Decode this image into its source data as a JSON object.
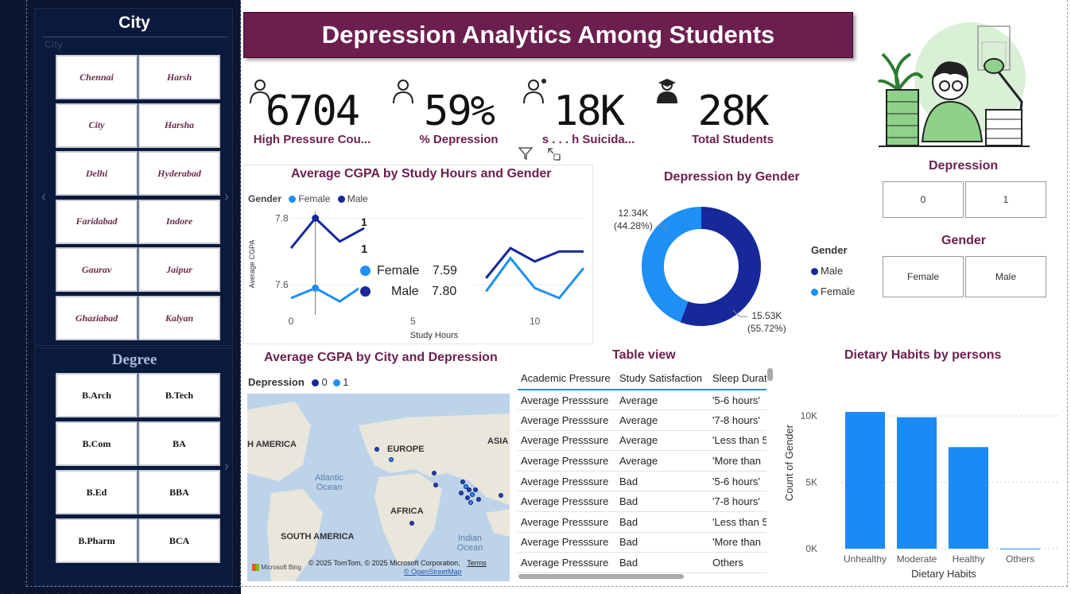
{
  "page_title": "Depression Analytics Among Students",
  "city_slicer": {
    "title": "City",
    "subtitle": "City",
    "items": [
      "Chennai",
      "Harsh",
      "City",
      "Harsha",
      "Delhi",
      "Hyderabad",
      "Faridabad",
      "Indore",
      "Gaurav",
      "Jaipur",
      "Ghaziabad",
      "Kalyan"
    ],
    "prev_glyph": "‹",
    "next_glyph": "›"
  },
  "degree_slicer": {
    "title": "Degree",
    "items": [
      "B.Arch",
      "B.Tech",
      "B.Com",
      "BA",
      "B.Ed",
      "BBA",
      "B.Pharm",
      "BCA"
    ],
    "next_glyph": "›"
  },
  "kpis": [
    {
      "value": "6704",
      "label": "High Pressure Cou...",
      "icon": "person-pressure-icon"
    },
    {
      "value": "59%",
      "label": "% Depression",
      "icon": "person-laptop-icon"
    },
    {
      "value": "18K",
      "label": "h Suicida...",
      "label_prefix": "s . . .",
      "icon": "person-thought-icon"
    },
    {
      "value": "28K",
      "label": "Total Students",
      "icon": "graduate-icon"
    }
  ],
  "line_chart": {
    "title": "Average CGPA by Study Hours and Gender",
    "legend_title": "Gender",
    "ylabel": "Average CGPA",
    "xlabel": "Study Hours",
    "yticks": [
      "7.8",
      "7.6"
    ],
    "xticks": [
      "0",
      "5",
      "10"
    ],
    "tooltip": {
      "header": "1",
      "rows": [
        {
          "name": "Female",
          "value": "7.59"
        },
        {
          "name": "Male",
          "value": "7.80"
        }
      ]
    },
    "partial_label": "1"
  },
  "donut": {
    "title": "Depression by Gender",
    "legend_title": "Gender",
    "label_female": "12.34K",
    "label_female_pct": "(44.28%)",
    "label_male": "15.53K",
    "label_male_pct": "(55.72%)"
  },
  "depression_slicer": {
    "title": "Depression",
    "items": [
      "0",
      "1"
    ]
  },
  "gender_slicer": {
    "title": "Gender",
    "items": [
      "Female",
      "Male"
    ]
  },
  "map_visual": {
    "title": "Average CGPA by City and Depression",
    "legend_title": "Depression",
    "continents": [
      "H AMERICA",
      "EUROPE",
      "ASIA",
      "AFRICA",
      "SOUTH AMERICA"
    ],
    "oceans": [
      "Atlantic Ocean",
      "Indian Ocean"
    ],
    "attribution": "© 2025 TomTom, © 2025 Microsoft Corporation,",
    "terms": "Terms",
    "osm": "© OpenStreetMap",
    "bing": "Microsoft Bing"
  },
  "table_view": {
    "title": "Table view",
    "columns": [
      "Academic Pressure",
      "Study Satisfaction",
      "Sleep Durat"
    ],
    "rows": [
      [
        "Average Presssure",
        "Average",
        "'5-6 hours'"
      ],
      [
        "Average Presssure",
        "Average",
        "'7-8 hours'"
      ],
      [
        "Average Presssure",
        "Average",
        "'Less than 5"
      ],
      [
        "Average Presssure",
        "Average",
        "'More than"
      ],
      [
        "Average Presssure",
        "Bad",
        "'5-6 hours'"
      ],
      [
        "Average Presssure",
        "Bad",
        "'7-8 hours'"
      ],
      [
        "Average Presssure",
        "Bad",
        "'Less than 5"
      ],
      [
        "Average Presssure",
        "Bad",
        "'More than"
      ],
      [
        "Average Presssure",
        "Bad",
        "Others"
      ]
    ]
  },
  "colors": {
    "accent": "#6c1e4f",
    "female": "#1e90f5",
    "male": "#17289a",
    "panel": "#0b1530",
    "bar": "#1a8af5"
  },
  "chart_data": [
    {
      "type": "line",
      "title": "Average CGPA by Study Hours and Gender",
      "xlabel": "Study Hours",
      "ylabel": "Average CGPA",
      "x": [
        0,
        1,
        2,
        3,
        4,
        5,
        6,
        7,
        8,
        9,
        10,
        11,
        12
      ],
      "ylim": [
        7.5,
        7.82
      ],
      "series": [
        {
          "name": "Female",
          "values": [
            7.56,
            7.59,
            7.55,
            7.6,
            null,
            null,
            null,
            null,
            7.58,
            7.68,
            7.59,
            7.56,
            7.65
          ]
        },
        {
          "name": "Male",
          "values": [
            7.71,
            7.8,
            7.73,
            7.77,
            null,
            null,
            null,
            null,
            7.62,
            7.71,
            7.67,
            7.7,
            7.7
          ]
        }
      ]
    },
    {
      "type": "pie",
      "title": "Depression by Gender",
      "categories": [
        "Male",
        "Female"
      ],
      "values": [
        15.53,
        12.34
      ],
      "percents": [
        55.72,
        44.28
      ]
    },
    {
      "type": "scatter",
      "title": "Average CGPA by City and Depression",
      "legend": [
        "0",
        "1"
      ]
    },
    {
      "type": "bar",
      "title": "Dietary Habits by persons",
      "categories": [
        "Unhealthy",
        "Moderate",
        "Healthy",
        "Others"
      ],
      "values": [
        10300,
        9900,
        7650,
        12
      ],
      "xlabel": "Dietary Habits",
      "ylabel": "Count of Gender",
      "yticks": [
        "10K",
        "5K",
        "0K"
      ],
      "ylim": [
        0,
        11500
      ],
      "grid": true
    }
  ]
}
